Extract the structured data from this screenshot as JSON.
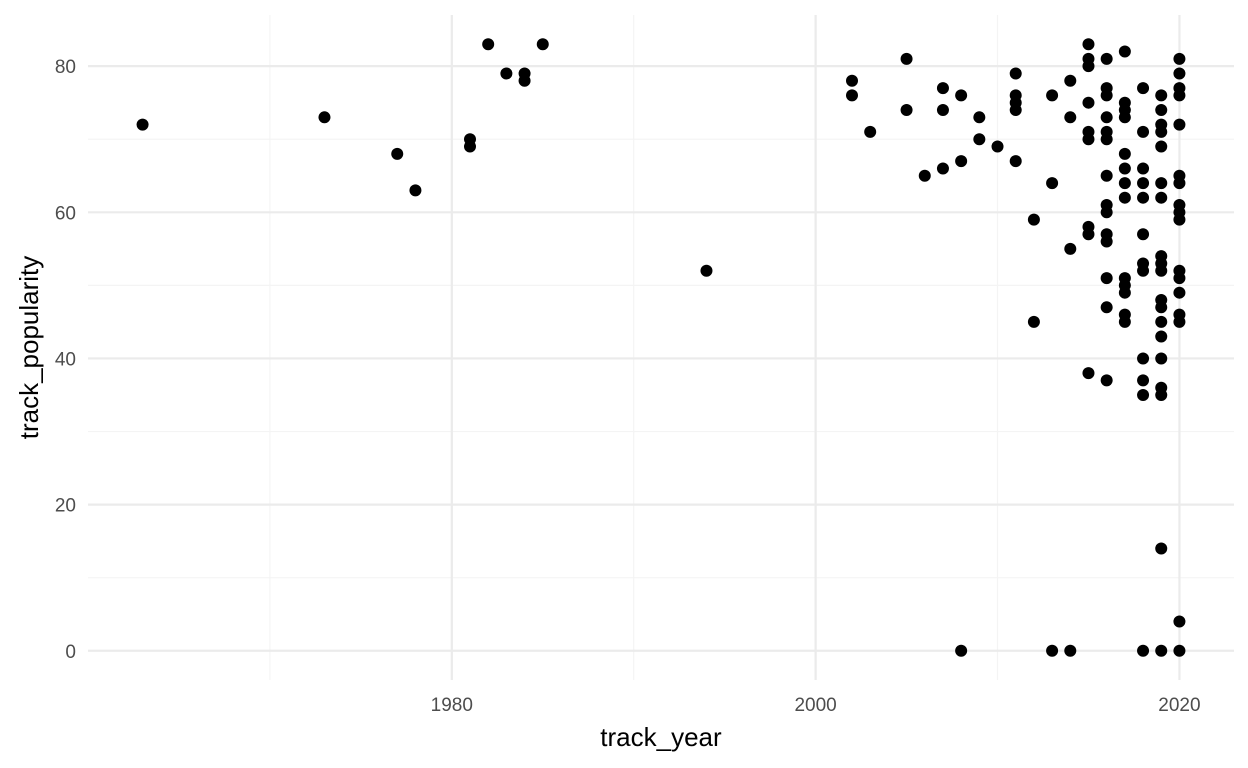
{
  "chart_data": {
    "type": "scatter",
    "title": "",
    "xlabel": "track_year",
    "ylabel": "track_popularity",
    "xlim": [
      1960,
      2023
    ],
    "ylim": [
      -4,
      87
    ],
    "x_major_ticks": [
      1980,
      2000,
      2020
    ],
    "x_minor_ticks": [
      1970,
      1990,
      2010
    ],
    "y_major_ticks": [
      0,
      20,
      40,
      60,
      80
    ],
    "y_minor_ticks": [
      10,
      30,
      50,
      70
    ],
    "x_tick_labels": [
      "1980",
      "2000",
      "2020"
    ],
    "y_tick_labels": [
      "0",
      "20",
      "40",
      "60",
      "80"
    ],
    "grid": true,
    "legend": "none",
    "colors": {
      "point": "#000000",
      "major_grid": "#ebebeb",
      "minor_grid": "#f4f4f4",
      "tick_text": "#4d4d4d"
    },
    "points": [
      [
        1963,
        72
      ],
      [
        1973,
        73
      ],
      [
        1977,
        68
      ],
      [
        1978,
        63
      ],
      [
        1981,
        70
      ],
      [
        1981,
        69
      ],
      [
        1982,
        83
      ],
      [
        1983,
        79
      ],
      [
        1984,
        79
      ],
      [
        1984,
        78
      ],
      [
        1985,
        83
      ],
      [
        1994,
        52
      ],
      [
        2002,
        78
      ],
      [
        2002,
        76
      ],
      [
        2003,
        71
      ],
      [
        2005,
        81
      ],
      [
        2005,
        74
      ],
      [
        2006,
        65
      ],
      [
        2007,
        77
      ],
      [
        2007,
        74
      ],
      [
        2007,
        66
      ],
      [
        2008,
        76
      ],
      [
        2008,
        67
      ],
      [
        2008,
        0
      ],
      [
        2009,
        73
      ],
      [
        2009,
        70
      ],
      [
        2010,
        69
      ],
      [
        2011,
        79
      ],
      [
        2011,
        76
      ],
      [
        2011,
        75
      ],
      [
        2011,
        74
      ],
      [
        2011,
        67
      ],
      [
        2012,
        59
      ],
      [
        2012,
        45
      ],
      [
        2013,
        76
      ],
      [
        2013,
        64
      ],
      [
        2013,
        0
      ],
      [
        2014,
        78
      ],
      [
        2014,
        73
      ],
      [
        2014,
        55
      ],
      [
        2014,
        0
      ],
      [
        2015,
        83
      ],
      [
        2015,
        81
      ],
      [
        2015,
        80
      ],
      [
        2015,
        75
      ],
      [
        2015,
        71
      ],
      [
        2015,
        70
      ],
      [
        2015,
        58
      ],
      [
        2015,
        57
      ],
      [
        2015,
        38
      ],
      [
        2016,
        81
      ],
      [
        2016,
        77
      ],
      [
        2016,
        76
      ],
      [
        2016,
        73
      ],
      [
        2016,
        71
      ],
      [
        2016,
        70
      ],
      [
        2016,
        65
      ],
      [
        2016,
        61
      ],
      [
        2016,
        60
      ],
      [
        2016,
        57
      ],
      [
        2016,
        56
      ],
      [
        2016,
        51
      ],
      [
        2016,
        47
      ],
      [
        2016,
        37
      ],
      [
        2017,
        82
      ],
      [
        2017,
        75
      ],
      [
        2017,
        74
      ],
      [
        2017,
        73
      ],
      [
        2017,
        68
      ],
      [
        2017,
        66
      ],
      [
        2017,
        64
      ],
      [
        2017,
        62
      ],
      [
        2017,
        51
      ],
      [
        2017,
        50
      ],
      [
        2017,
        49
      ],
      [
        2017,
        46
      ],
      [
        2017,
        45
      ],
      [
        2018,
        77
      ],
      [
        2018,
        71
      ],
      [
        2018,
        66
      ],
      [
        2018,
        64
      ],
      [
        2018,
        62
      ],
      [
        2018,
        57
      ],
      [
        2018,
        53
      ],
      [
        2018,
        52
      ],
      [
        2018,
        40
      ],
      [
        2018,
        37
      ],
      [
        2018,
        35
      ],
      [
        2018,
        0
      ],
      [
        2019,
        76
      ],
      [
        2019,
        74
      ],
      [
        2019,
        72
      ],
      [
        2019,
        71
      ],
      [
        2019,
        69
      ],
      [
        2019,
        64
      ],
      [
        2019,
        62
      ],
      [
        2019,
        54
      ],
      [
        2019,
        53
      ],
      [
        2019,
        52
      ],
      [
        2019,
        48
      ],
      [
        2019,
        47
      ],
      [
        2019,
        45
      ],
      [
        2019,
        43
      ],
      [
        2019,
        40
      ],
      [
        2019,
        36
      ],
      [
        2019,
        35
      ],
      [
        2019,
        14
      ],
      [
        2019,
        0
      ],
      [
        2020,
        81
      ],
      [
        2020,
        79
      ],
      [
        2020,
        77
      ],
      [
        2020,
        76
      ],
      [
        2020,
        72
      ],
      [
        2020,
        65
      ],
      [
        2020,
        64
      ],
      [
        2020,
        61
      ],
      [
        2020,
        60
      ],
      [
        2020,
        59
      ],
      [
        2020,
        52
      ],
      [
        2020,
        51
      ],
      [
        2020,
        49
      ],
      [
        2020,
        46
      ],
      [
        2020,
        45
      ],
      [
        2020,
        4
      ],
      [
        2020,
        0
      ]
    ]
  }
}
